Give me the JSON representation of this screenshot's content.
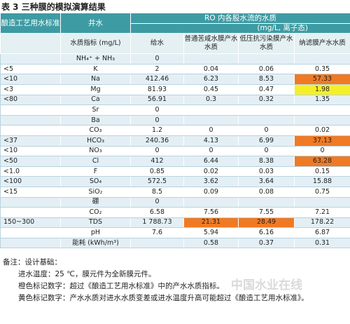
{
  "title": "表 3  三种膜的模拟演算结果",
  "header": {
    "standard": "酿造工艺用水标准",
    "well": "井水",
    "ro": "RO 内各股水流的水质",
    "unit": "(mg/L, 离子态)",
    "columns": [
      "水质指标 (mg/L)",
      "给水",
      "普通苦咸水膜产水水质",
      "低压抗污染膜产水水质",
      "纳滤膜产水水质"
    ]
  },
  "table": {
    "rows": [
      [
        "",
        "NH₄⁺ + NH₃",
        "0",
        "",
        "",
        ""
      ],
      [
        "<5",
        "K",
        "2",
        "0.04",
        "0.06",
        "0.35"
      ],
      [
        "<10",
        "Na",
        "412.46",
        "6.23",
        "8.53",
        "57.33"
      ],
      [
        "<3",
        "Mg",
        "81.93",
        "0.45",
        "0.47",
        "1.98"
      ],
      [
        "<80",
        "Ca",
        "56.91",
        "0.3",
        "0.32",
        "1.35"
      ],
      [
        "",
        "Sr",
        "0",
        "",
        "",
        ""
      ],
      [
        "",
        "Ba",
        "0",
        "",
        "",
        ""
      ],
      [
        "",
        "CO₃",
        "1.2",
        "0",
        "0",
        "0.02"
      ],
      [
        "<37",
        "HCO₃",
        "240.36",
        "4.13",
        "6.99",
        "37.13"
      ],
      [
        "<10",
        "NO₃",
        "0",
        "0",
        "0",
        "0"
      ],
      [
        "<50",
        "Cl",
        "412",
        "6.44",
        "8.38",
        "63.28"
      ],
      [
        "<1.0",
        "F",
        "0.85",
        "0.02",
        "0.03",
        "0.15"
      ],
      [
        "<100",
        "SO₄",
        "572.5",
        "3.62",
        "3.64",
        "15.88"
      ],
      [
        "<15",
        "SiO₂",
        "8.5",
        "0.09",
        "0.08",
        "0.75"
      ],
      [
        "",
        "硼",
        "0",
        "",
        "",
        ""
      ],
      [
        "",
        "CO₂",
        "6.58",
        "7.56",
        "7.55",
        "7.21"
      ],
      [
        "150~300",
        "TDS",
        "1 788.73",
        "21.31",
        "28.49",
        "178.22"
      ],
      [
        "",
        "pH",
        "7.6",
        "5.94",
        "6.16",
        "6.87"
      ],
      [
        "",
        "能耗 (kWh/m³)",
        "",
        "0.58",
        "0.37",
        "0.31"
      ]
    ]
  },
  "notes": [
    "备注：设计基础：",
    "进水温度：25 ℃，膜元件为全新膜元件。",
    "橙色标记数字：超过《酿造工艺用水标准》中的产水水质指标。",
    "黄色标记数字：产水水质对进水水质变差或进水温度升高可能超过《酿造工艺用水标准》。"
  ],
  "watermark": "中国水业在线"
}
